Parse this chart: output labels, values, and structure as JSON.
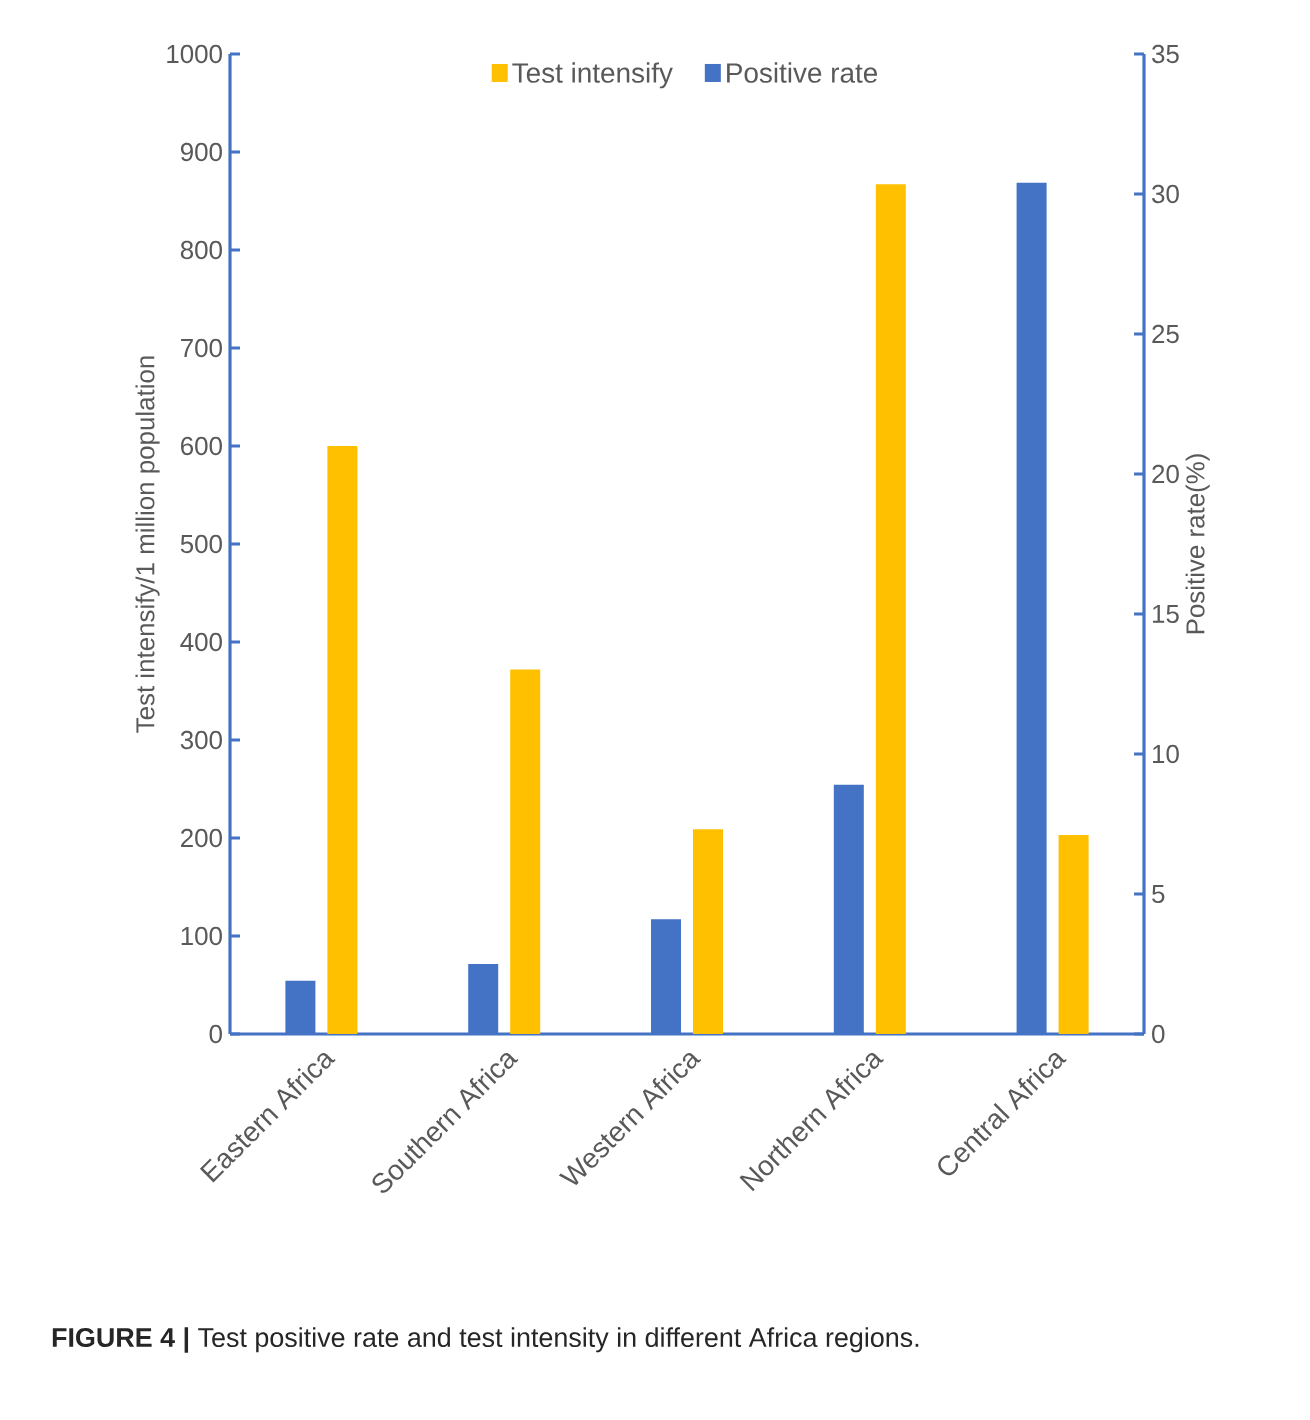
{
  "chart_data": {
    "type": "bar",
    "categories": [
      "Eastern Africa",
      "Southern Africa",
      "Western Africa",
      "Northern Africa",
      "Central Africa"
    ],
    "series": [
      {
        "name": "Test intensify",
        "color": "#ffc000",
        "values": [
          600,
          372,
          209,
          867,
          203
        ]
      },
      {
        "name": "Positive rate",
        "color": "#4472c4",
        "axis": "y2",
        "values": [
          1.9,
          2.5,
          4.1,
          8.9,
          30.4
        ]
      }
    ],
    "ylabel": "Test intensify/1 million population",
    "y2label": "Positive rate(%)",
    "ylim": [
      0,
      1000
    ],
    "yticks": [
      0,
      100,
      200,
      300,
      400,
      500,
      600,
      700,
      800,
      900,
      1000
    ],
    "y2lim": [
      0,
      35
    ],
    "y2ticks": [
      0,
      5,
      10,
      15,
      20,
      25,
      30,
      35
    ],
    "legend": "top",
    "annotations": [
      "**FIGURE 4 |** Test positive rate and test intensity in different Africa regions."
    ]
  }
}
